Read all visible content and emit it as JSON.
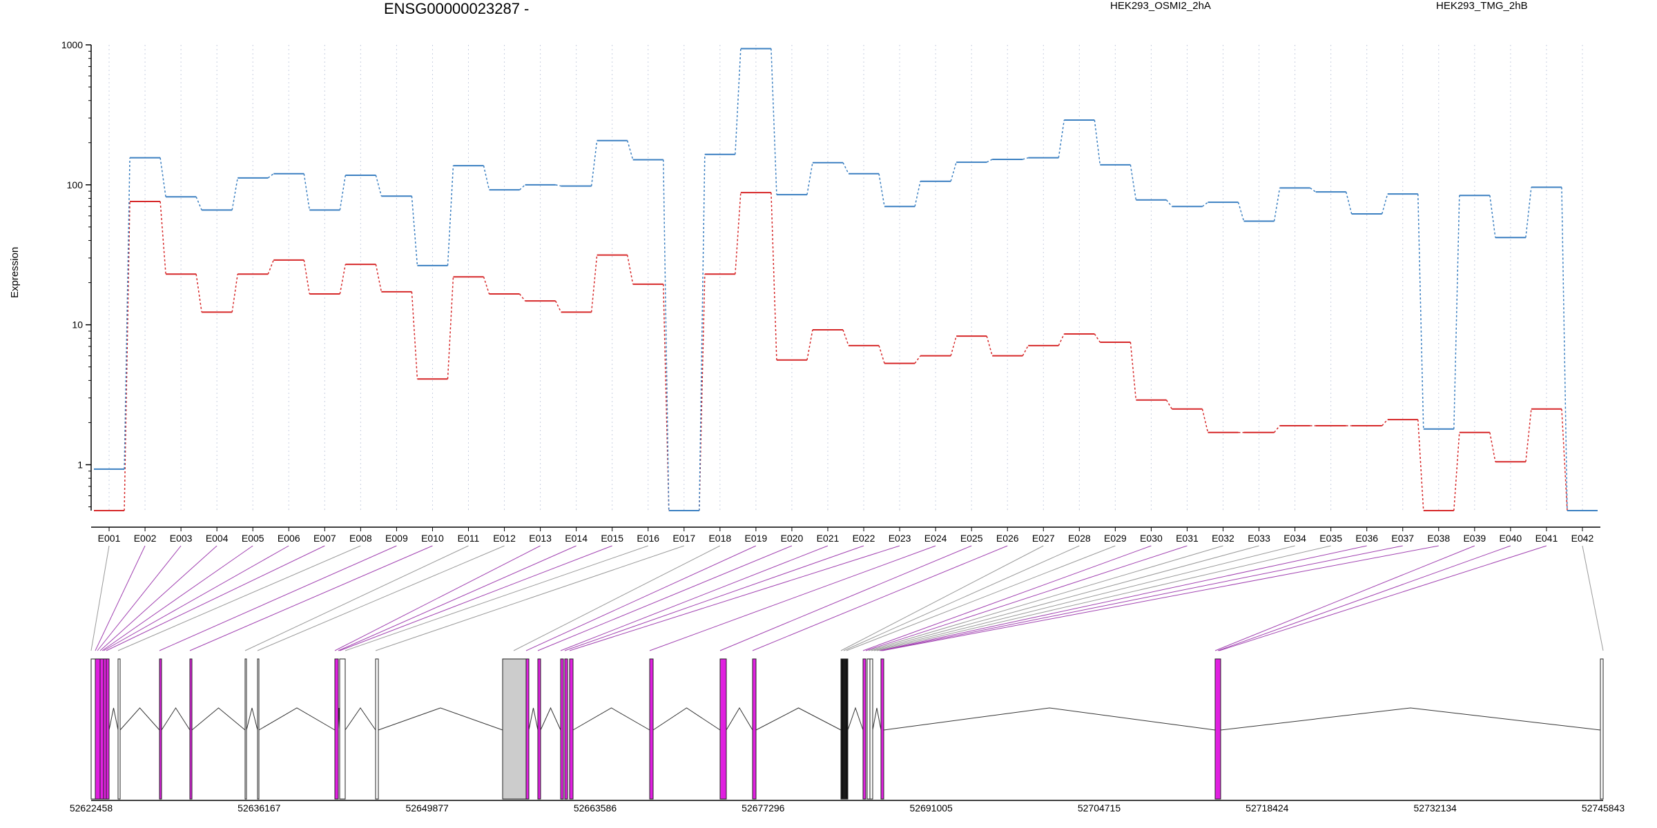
{
  "chart_data": {
    "type": "line",
    "title": "ENSG00000023287 -",
    "ylabel": "Expression",
    "xlabel": "",
    "yscale": "log",
    "ylim": [
      0.47,
      1000
    ],
    "yticks": [
      "1",
      "10",
      "100",
      "1000"
    ],
    "grid": "vertical dotted per exon",
    "legend_position": "top",
    "categories": [
      "E001",
      "E002",
      "E003",
      "E004",
      "E005",
      "E006",
      "E007",
      "E008",
      "E009",
      "E010",
      "E011",
      "E012",
      "E013",
      "E014",
      "E015",
      "E016",
      "E017",
      "E018",
      "E019",
      "E020",
      "E021",
      "E022",
      "E023",
      "E024",
      "E025",
      "E026",
      "E027",
      "E028",
      "E029",
      "E030",
      "E031",
      "E032",
      "E033",
      "E034",
      "E035",
      "E036",
      "E037",
      "E038",
      "E039",
      "E040",
      "E041",
      "E042"
    ],
    "series": [
      {
        "name": "HEK293_OSMI2_2hA",
        "color": "#d62728",
        "values": [
          0.47,
          76,
          23,
          12.3,
          23,
          29,
          16.6,
          27,
          17.2,
          4.1,
          22,
          16.6,
          14.8,
          12.3,
          31.5,
          19.5,
          0.47,
          23,
          88,
          5.6,
          9.2,
          7.1,
          5.3,
          6,
          8.3,
          6,
          7.1,
          8.6,
          7.5,
          2.9,
          2.5,
          1.7,
          1.7,
          1.9,
          1.9,
          1.9,
          2.1,
          0.47,
          1.7,
          1.05,
          2.5,
          0.47
        ]
      },
      {
        "name": "HEK293_TMG_2hB",
        "color": "#3a7fc1",
        "values": [
          0.93,
          156,
          82,
          66,
          112,
          120,
          66,
          117,
          83,
          26.5,
          137,
          92,
          100,
          98,
          207,
          151,
          0.47,
          165,
          940,
          85,
          144,
          120,
          70,
          106,
          145,
          152,
          156,
          290,
          139,
          78,
          70,
          75,
          55,
          95,
          89,
          62,
          86,
          1.8,
          84,
          42,
          96,
          0.47
        ]
      }
    ],
    "gene_model": {
      "genomic_ticks": [
        "52622458",
        "52636167",
        "52649877",
        "52663586",
        "52677296",
        "52691005",
        "52704715",
        "52718424",
        "52732134",
        "52745843"
      ],
      "exon_highlight_color": "#e020e0",
      "connector_highlight_color": "#a040b0",
      "connector_normal_color": "#999999"
    }
  }
}
